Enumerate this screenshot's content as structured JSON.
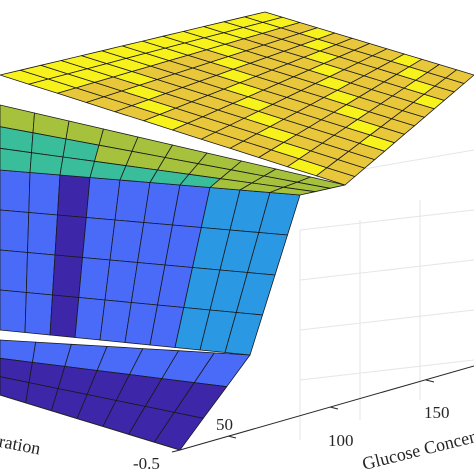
{
  "chart_data": {
    "type": "surface",
    "colormap": [
      "#3e26a8",
      "#4a6bf7",
      "#2a98e3",
      "#3abd9a",
      "#a6c23c",
      "#e8c83a",
      "#f8f21c"
    ],
    "xlabel": "Glucose Concentration",
    "ylabel": "Concentration",
    "x_ticks": [
      "50",
      "100",
      "150"
    ],
    "y_ticks": [
      "-0.5"
    ],
    "grid": true
  }
}
